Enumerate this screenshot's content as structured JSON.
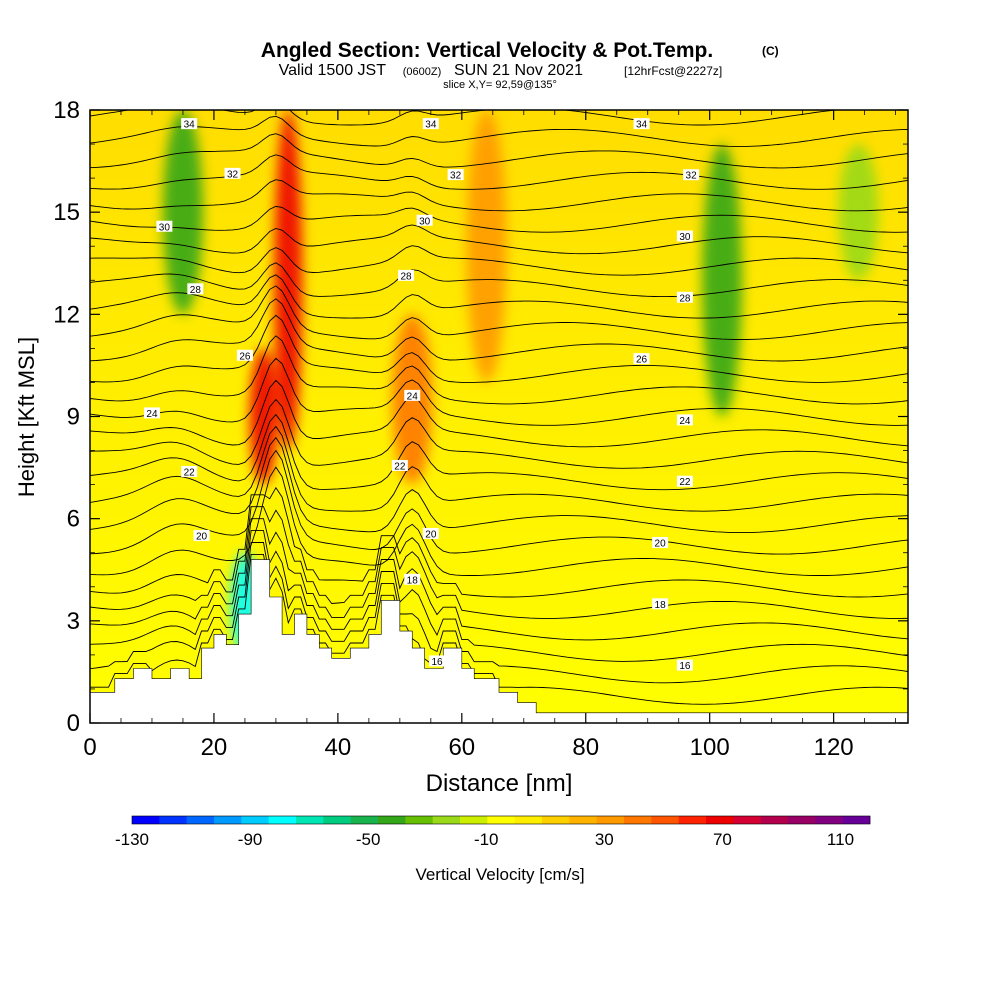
{
  "header": {
    "title": "Angled Section: Vertical Velocity & Pot.Temp.",
    "title_units": "(C)",
    "subtitle_valid": "Valid 1500 JST",
    "subtitle_utc": "(0600Z)",
    "subtitle_date": "SUN 21 Nov 2021",
    "subtitle_fcst": "[12hrFcst@2227z]",
    "slice_info": "slice X,Y= 92,59@135°"
  },
  "colorbar": {
    "label": "Vertical Velocity [cm/s]",
    "tick_labels": [
      "-130",
      "-90",
      "-50",
      "-10",
      "30",
      "70",
      "110"
    ],
    "colors": [
      "#0000ff",
      "#0033ff",
      "#0066ff",
      "#0099ff",
      "#00ccff",
      "#00ffff",
      "#00e6b3",
      "#00cc80",
      "#19b34d",
      "#33a619",
      "#66bf00",
      "#99d919",
      "#ccee00",
      "#ffff00",
      "#ffee00",
      "#ffd000",
      "#ffb300",
      "#ff9900",
      "#ff7700",
      "#ff5500",
      "#ff2200",
      "#ee0000",
      "#d40033",
      "#b3004d",
      "#990066",
      "#800080",
      "#660099"
    ]
  },
  "chart_data": {
    "type": "heatmap",
    "title": "Angled Section: Vertical Velocity & Pot.Temp.",
    "xlabel": "Distance [nm]",
    "ylabel": "Height [Kft MSL]",
    "xlim": [
      0,
      132
    ],
    "ylim": [
      0,
      18
    ],
    "x_ticks": [
      0,
      20,
      40,
      60,
      80,
      100,
      120
    ],
    "y_ticks": [
      0,
      3,
      6,
      9,
      12,
      15,
      18
    ],
    "shaded_field": "Vertical Velocity [cm/s]",
    "shaded_range": [
      -130,
      120
    ],
    "velocity_features": [
      {
        "x": 32,
        "y_from": 8,
        "y_to": 18,
        "value": 70
      },
      {
        "x": 28,
        "y_from": 7,
        "y_to": 11,
        "value": 70
      },
      {
        "x": 52,
        "y_from": 7,
        "y_to": 12,
        "value": 40
      },
      {
        "x": 64,
        "y_from": 10,
        "y_to": 18,
        "value": 30
      },
      {
        "x": 15,
        "y_from": 12,
        "y_to": 18,
        "value": -40
      },
      {
        "x": 102,
        "y_from": 9,
        "y_to": 17,
        "value": -40
      },
      {
        "x": 25,
        "y_from": 2,
        "y_to": 5,
        "value": -80
      },
      {
        "x": 124,
        "y_from": 13,
        "y_to": 17,
        "value": -20
      }
    ],
    "contour_field": "Pot.Temp. (C)",
    "contours": [
      {
        "level": "16",
        "label_x": [
          56,
          96
        ]
      },
      {
        "level": "18",
        "label_x": [
          52,
          92
        ]
      },
      {
        "level": "20",
        "label_x": [
          18,
          55,
          92
        ]
      },
      {
        "level": "22",
        "label_x": [
          16,
          50,
          96
        ]
      },
      {
        "level": "24",
        "label_x": [
          10,
          52,
          96
        ]
      },
      {
        "level": "26",
        "label_x": [
          25,
          89
        ]
      },
      {
        "level": "28",
        "label_x": [
          17,
          51,
          96
        ]
      },
      {
        "level": "30",
        "label_x": [
          12,
          54,
          96
        ]
      },
      {
        "level": "32",
        "label_x": [
          23,
          59,
          97
        ]
      },
      {
        "level": "34",
        "label_x": [
          16,
          55,
          89
        ]
      }
    ],
    "terrain_profile": [
      [
        0,
        0.9
      ],
      [
        4,
        0.9
      ],
      [
        4,
        1.3
      ],
      [
        7,
        1.3
      ],
      [
        7,
        1.6
      ],
      [
        10,
        1.6
      ],
      [
        10,
        1.3
      ],
      [
        13,
        1.3
      ],
      [
        13,
        1.6
      ],
      [
        16,
        1.6
      ],
      [
        16,
        1.3
      ],
      [
        18,
        1.3
      ],
      [
        18,
        2.2
      ],
      [
        20,
        2.2
      ],
      [
        20,
        2.6
      ],
      [
        22,
        2.6
      ],
      [
        22,
        2.3
      ],
      [
        24,
        2.3
      ],
      [
        24,
        3.2
      ],
      [
        26,
        3.2
      ],
      [
        26,
        4.8
      ],
      [
        29,
        4.8
      ],
      [
        29,
        3.7
      ],
      [
        31,
        3.7
      ],
      [
        31,
        2.6
      ],
      [
        33,
        2.6
      ],
      [
        33,
        3.2
      ],
      [
        35,
        3.2
      ],
      [
        35,
        2.6
      ],
      [
        37,
        2.6
      ],
      [
        37,
        2.2
      ],
      [
        39,
        2.2
      ],
      [
        39,
        1.9
      ],
      [
        42,
        1.9
      ],
      [
        42,
        2.2
      ],
      [
        45,
        2.2
      ],
      [
        45,
        2.6
      ],
      [
        47,
        2.6
      ],
      [
        47,
        3.6
      ],
      [
        50,
        3.6
      ],
      [
        50,
        2.7
      ],
      [
        52,
        2.7
      ],
      [
        52,
        2.2
      ],
      [
        54,
        2.2
      ],
      [
        54,
        1.6
      ],
      [
        57,
        1.6
      ],
      [
        57,
        2.2
      ],
      [
        60,
        2.2
      ],
      [
        60,
        1.6
      ],
      [
        62,
        1.6
      ],
      [
        62,
        1.3
      ],
      [
        66,
        1.3
      ],
      [
        66,
        0.9
      ],
      [
        69,
        0.9
      ],
      [
        69,
        0.6
      ],
      [
        72,
        0.6
      ],
      [
        72,
        0.3
      ],
      [
        132,
        0.3
      ]
    ]
  }
}
